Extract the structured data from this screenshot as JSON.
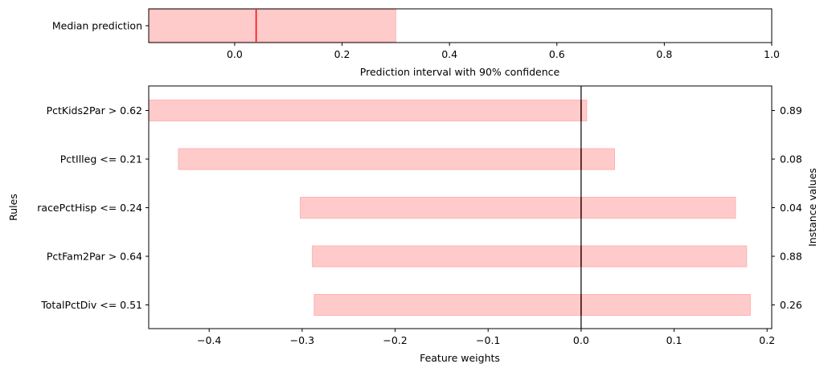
{
  "chart_data": [
    {
      "type": "bar",
      "orientation": "horizontal",
      "ylabel": "",
      "xlabel": "Prediction interval with 90% confidence",
      "categories": [
        "Median prediction"
      ],
      "interval": {
        "low": -0.16,
        "high": 0.3
      },
      "median": 0.04,
      "xlim": [
        -0.16,
        1.0
      ],
      "xticks": [
        0.0,
        0.2,
        0.4,
        0.6,
        0.8,
        1.0
      ],
      "xtick_labels": [
        "0.0",
        "0.2",
        "0.4",
        "0.6",
        "0.8",
        "1.0"
      ],
      "colors": {
        "fill": "#ffcaca",
        "edge": "#ffb3b3",
        "median": "#ff0000"
      }
    },
    {
      "type": "bar",
      "orientation": "horizontal",
      "xlabel": "Feature weights",
      "ylabel": "Rules",
      "ylabel_right": "Instance values",
      "categories": [
        "PctKids2Par > 0.62",
        "PctIlleg <= 0.21",
        "racePctHisp <= 0.24",
        "PctFam2Par > 0.64",
        "TotalPctDiv <= 0.51"
      ],
      "instance_values": [
        "0.89",
        "0.08",
        "0.04",
        "0.88",
        "0.26"
      ],
      "intervals": [
        {
          "low": -0.465,
          "high": 0.006
        },
        {
          "low": -0.433,
          "high": 0.036
        },
        {
          "low": -0.302,
          "high": 0.166
        },
        {
          "low": -0.289,
          "high": 0.178
        },
        {
          "low": -0.287,
          "high": 0.182
        }
      ],
      "weights": [
        0.0,
        0.0,
        0.0,
        0.0,
        0.0
      ],
      "xlim": [
        -0.465,
        0.205
      ],
      "xticks": [
        -0.4,
        -0.3,
        -0.2,
        -0.1,
        0.0,
        0.1,
        0.2
      ],
      "xtick_labels": [
        "−0.4",
        "−0.3",
        "−0.2",
        "−0.1",
        "0.0",
        "0.1",
        "0.2"
      ],
      "zero_line": 0.0,
      "colors": {
        "fill": "#ffcaca",
        "edge": "#ffb3b3",
        "weight": "#ff0000",
        "zero": "#000000"
      }
    }
  ]
}
